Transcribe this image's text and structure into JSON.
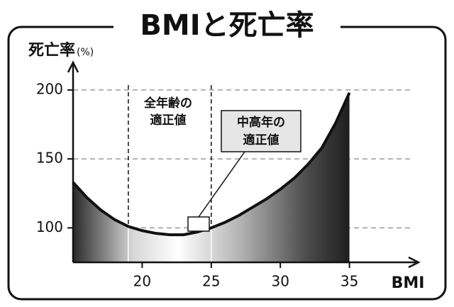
{
  "chart_data": {
    "type": "area",
    "title": "BMIと死亡率",
    "y_label": "死亡率",
    "y_unit": "(%)",
    "x_label": "BMI",
    "x": [
      15,
      16,
      17,
      18,
      19,
      20,
      21,
      22,
      23,
      24,
      25,
      26,
      27,
      28,
      29,
      30,
      31,
      32,
      33,
      34,
      35
    ],
    "values": [
      133,
      122,
      113,
      106,
      101,
      98,
      96,
      95,
      95,
      97,
      100,
      104,
      109,
      115,
      121,
      128,
      136,
      146,
      158,
      176,
      198
    ],
    "xlim": [
      15,
      40
    ],
    "ylim": [
      75,
      220
    ],
    "xticks": [
      20,
      25,
      30,
      35
    ],
    "yticks": [
      100,
      150,
      200
    ],
    "reference_lines": [
      19,
      25
    ],
    "grid": true,
    "annotation": [
      "全年齢の",
      "適正値"
    ],
    "callout": [
      "中高年の",
      "適正値"
    ]
  }
}
